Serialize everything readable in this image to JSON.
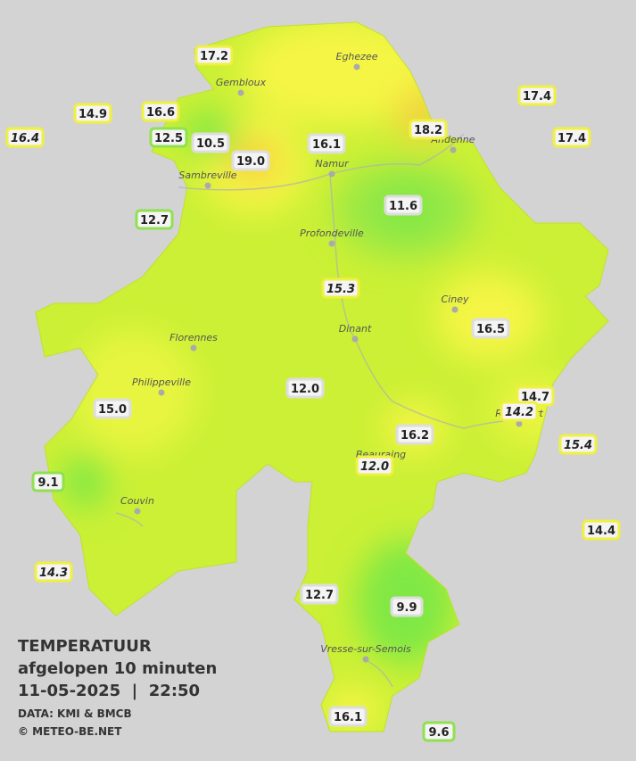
{
  "places": [
    "Eghezee",
    "Gembloux",
    "Andenne",
    "Sambreville",
    "Namur",
    "Profondeville",
    "Ciney",
    "Florennes",
    "Dinant",
    "Philippeville",
    "Rochefort",
    "Beauraing",
    "Couvin",
    "Vresse-sur-Semois"
  ],
  "stations": [
    {
      "value": "17.2",
      "color": "#f0f040"
    },
    {
      "value": "14.9",
      "color": "#f0f040"
    },
    {
      "value": "16.6",
      "color": "#f0f040"
    },
    {
      "value": "16.4",
      "color": "#f0f040",
      "italic": true
    },
    {
      "value": "12.5",
      "color": "#90e050"
    },
    {
      "value": "10.5",
      "color": "#dddddd"
    },
    {
      "value": "19.0",
      "color": "#dddddd"
    },
    {
      "value": "16.1",
      "color": "#dddddd"
    },
    {
      "value": "18.2",
      "color": "#f0f040"
    },
    {
      "value": "17.4",
      "color": "#f0f040"
    },
    {
      "value": "17.4",
      "color": "#f0f040"
    },
    {
      "value": "12.7",
      "color": "#90e050"
    },
    {
      "value": "11.6",
      "color": "#dddddd"
    },
    {
      "value": "15.3",
      "color": "#f0f040",
      "italic": true
    },
    {
      "value": "16.5",
      "color": "#dddddd"
    },
    {
      "value": "12.0",
      "color": "#dddddd"
    },
    {
      "value": "15.0",
      "color": "#dddddd"
    },
    {
      "value": "14.7",
      "color": "#f0f040"
    },
    {
      "value": "14.2",
      "color": "#f0f040",
      "italic": true
    },
    {
      "value": "16.2",
      "color": "#dddddd"
    },
    {
      "value": "15.4",
      "color": "#f0f040",
      "italic": true
    },
    {
      "value": "12.0",
      "color": "#f0f040",
      "italic": true
    },
    {
      "value": "9.1",
      "color": "#90e050"
    },
    {
      "value": "14.4",
      "color": "#f0f040"
    },
    {
      "value": "14.3",
      "color": "#f0f040",
      "italic": true
    },
    {
      "value": "12.7",
      "color": "#dddddd"
    },
    {
      "value": "9.9",
      "color": "#dddddd"
    },
    {
      "value": "16.1",
      "color": "#dddddd"
    },
    {
      "value": "9.6",
      "color": "#90e050"
    }
  ],
  "legend": {
    "title": "TEMPERATUUR",
    "subtitle": "afgelopen 10 minuten",
    "datetime": "11-05-2025  |  22:50",
    "source": "DATA: KMI & BMCB",
    "copyright": "© METEO-BE.NET"
  }
}
